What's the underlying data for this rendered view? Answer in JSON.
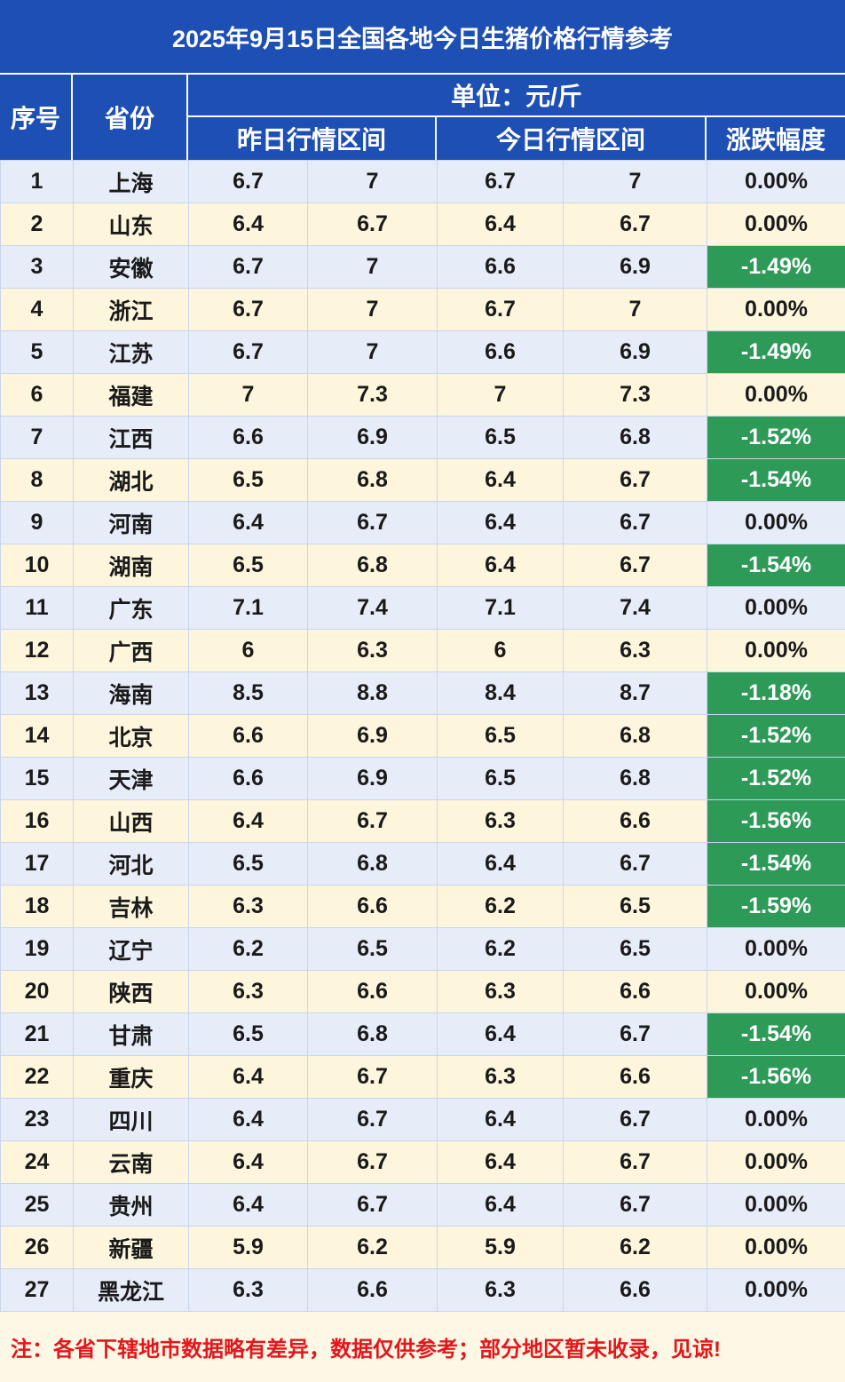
{
  "title": "2025年9月15日全国各地今日生猪价格行情参考",
  "header": {
    "seq": "序号",
    "province": "省份",
    "unit": "单位：元/斤",
    "yesterday": "昨日行情区间",
    "today": "今日行情区间",
    "change": "涨跌幅度"
  },
  "rows": [
    [
      "1",
      "上海",
      "6.7",
      "7",
      "6.7",
      "7",
      "0.00%"
    ],
    [
      "2",
      "山东",
      "6.4",
      "6.7",
      "6.4",
      "6.7",
      "0.00%"
    ],
    [
      "3",
      "安徽",
      "6.7",
      "7",
      "6.6",
      "6.9",
      "-1.49%"
    ],
    [
      "4",
      "浙江",
      "6.7",
      "7",
      "6.7",
      "7",
      "0.00%"
    ],
    [
      "5",
      "江苏",
      "6.7",
      "7",
      "6.6",
      "6.9",
      "-1.49%"
    ],
    [
      "6",
      "福建",
      "7",
      "7.3",
      "7",
      "7.3",
      "0.00%"
    ],
    [
      "7",
      "江西",
      "6.6",
      "6.9",
      "6.5",
      "6.8",
      "-1.52%"
    ],
    [
      "8",
      "湖北",
      "6.5",
      "6.8",
      "6.4",
      "6.7",
      "-1.54%"
    ],
    [
      "9",
      "河南",
      "6.4",
      "6.7",
      "6.4",
      "6.7",
      "0.00%"
    ],
    [
      "10",
      "湖南",
      "6.5",
      "6.8",
      "6.4",
      "6.7",
      "-1.54%"
    ],
    [
      "11",
      "广东",
      "7.1",
      "7.4",
      "7.1",
      "7.4",
      "0.00%"
    ],
    [
      "12",
      "广西",
      "6",
      "6.3",
      "6",
      "6.3",
      "0.00%"
    ],
    [
      "13",
      "海南",
      "8.5",
      "8.8",
      "8.4",
      "8.7",
      "-1.18%"
    ],
    [
      "14",
      "北京",
      "6.6",
      "6.9",
      "6.5",
      "6.8",
      "-1.52%"
    ],
    [
      "15",
      "天津",
      "6.6",
      "6.9",
      "6.5",
      "6.8",
      "-1.52%"
    ],
    [
      "16",
      "山西",
      "6.4",
      "6.7",
      "6.3",
      "6.6",
      "-1.56%"
    ],
    [
      "17",
      "河北",
      "6.5",
      "6.8",
      "6.4",
      "6.7",
      "-1.54%"
    ],
    [
      "18",
      "吉林",
      "6.3",
      "6.6",
      "6.2",
      "6.5",
      "-1.59%"
    ],
    [
      "19",
      "辽宁",
      "6.2",
      "6.5",
      "6.2",
      "6.5",
      "0.00%"
    ],
    [
      "20",
      "陕西",
      "6.3",
      "6.6",
      "6.3",
      "6.6",
      "0.00%"
    ],
    [
      "21",
      "甘肃",
      "6.5",
      "6.8",
      "6.4",
      "6.7",
      "-1.54%"
    ],
    [
      "22",
      "重庆",
      "6.4",
      "6.7",
      "6.3",
      "6.6",
      "-1.56%"
    ],
    [
      "23",
      "四川",
      "6.4",
      "6.7",
      "6.4",
      "6.7",
      "0.00%"
    ],
    [
      "24",
      "云南",
      "6.4",
      "6.7",
      "6.4",
      "6.7",
      "0.00%"
    ],
    [
      "25",
      "贵州",
      "6.4",
      "6.7",
      "6.4",
      "6.7",
      "0.00%"
    ],
    [
      "26",
      "新疆",
      "5.9",
      "6.2",
      "5.9",
      "6.2",
      "0.00%"
    ],
    [
      "27",
      "黑龙江",
      "6.3",
      "6.6",
      "6.3",
      "6.6",
      "0.00%"
    ]
  ],
  "note": "注：各省下辖地市数据略有差异，数据仅供参考；部分地区暂未收录，见谅!",
  "colors": {
    "header_blue": "#1e4fb4",
    "down_green": "#2e9a58",
    "note_red": "#e3161c"
  }
}
